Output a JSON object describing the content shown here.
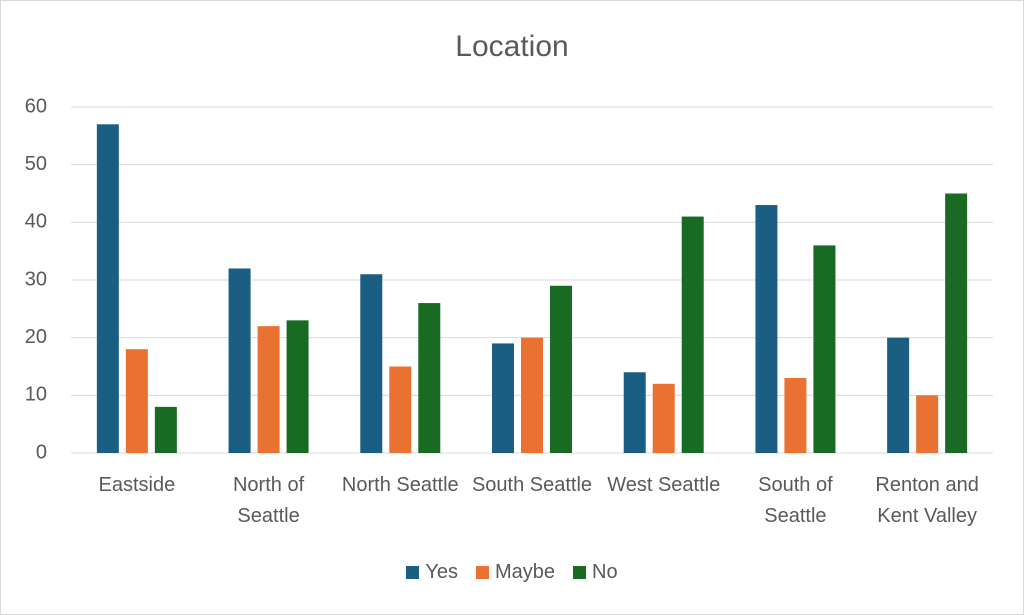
{
  "chart_data": {
    "type": "bar",
    "title": "Location",
    "categories": [
      "Eastside",
      "North of Seattle",
      "North Seattle",
      "South Seattle",
      "West Seattle",
      "South of Seattle",
      "Renton and Kent Valley"
    ],
    "series": [
      {
        "name": "Yes",
        "color": "#1b5e83",
        "values": [
          57,
          32,
          31,
          19,
          14,
          43,
          20
        ]
      },
      {
        "name": "Maybe",
        "color": "#e97132",
        "values": [
          18,
          22,
          15,
          20,
          12,
          13,
          10
        ]
      },
      {
        "name": "No",
        "color": "#196b24",
        "values": [
          8,
          23,
          26,
          29,
          41,
          36,
          45
        ]
      }
    ],
    "ylim": [
      0,
      60
    ],
    "yticks": [
      0,
      10,
      20,
      30,
      40,
      50,
      60
    ],
    "grid": true,
    "legend": "bottom"
  }
}
